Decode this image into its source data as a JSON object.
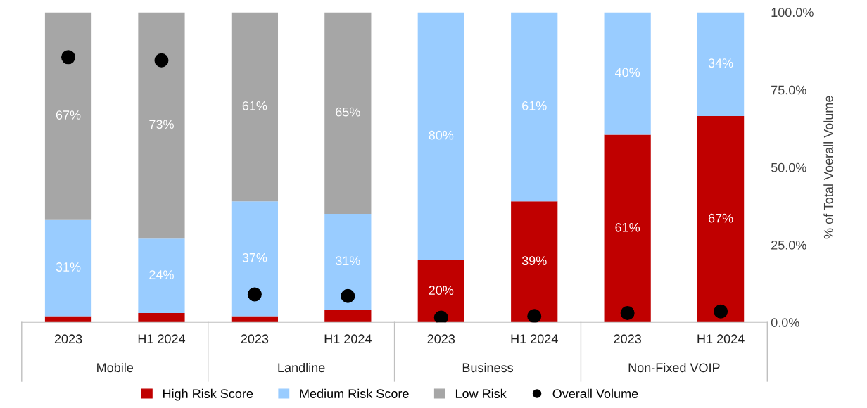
{
  "chart_data": {
    "type": "bar",
    "stacked": true,
    "ylabel": "% of Total Voerall Volume",
    "categories": [
      "2023",
      "H1 2024",
      "2023",
      "H1 2024",
      "2023",
      "H1 2024",
      "2023",
      "H1 2024"
    ],
    "series": [
      {
        "name": "High Risk Score",
        "color": "#c00000",
        "values": [
          2,
          3,
          2,
          4,
          20,
          39,
          60.5,
          66.5
        ],
        "value_labels": [
          null,
          null,
          null,
          null,
          "20%",
          "39%",
          "61%",
          "67%"
        ]
      },
      {
        "name": "Medium Risk Score",
        "color": "#99ccff",
        "values": [
          31,
          24,
          37,
          31,
          80,
          61,
          39.5,
          33.5
        ],
        "value_labels": [
          "31%",
          "24%",
          "37%",
          "31%",
          "80%",
          "61%",
          "40%",
          "34%"
        ]
      },
      {
        "name": "Low Risk",
        "color": "#a6a6a6",
        "values": [
          67,
          73,
          61,
          65,
          0,
          0,
          0,
          0
        ],
        "value_labels": [
          "67%",
          "73%",
          "61%",
          "65%",
          null,
          null,
          null,
          null
        ]
      },
      {
        "name": "Overall Volume",
        "type": "scatter",
        "color": "#000000",
        "marker": "circle",
        "values": [
          85.5,
          84.5,
          9,
          8.5,
          1.5,
          2,
          3,
          3.5
        ]
      }
    ],
    "annotations": [
      "Mobile",
      "Landline",
      "Business",
      "Non-Fixed VOIP"
    ],
    "ylim": [
      0,
      100
    ],
    "yticks": [
      {
        "value": 0,
        "label": "0.0%"
      },
      {
        "value": 25,
        "label": "25.0%"
      },
      {
        "value": 50,
        "label": "50.0%"
      },
      {
        "value": 75,
        "label": "75.0%"
      },
      {
        "value": 100,
        "label": "100.0%"
      }
    ],
    "grid": false,
    "legend": "bottom"
  }
}
